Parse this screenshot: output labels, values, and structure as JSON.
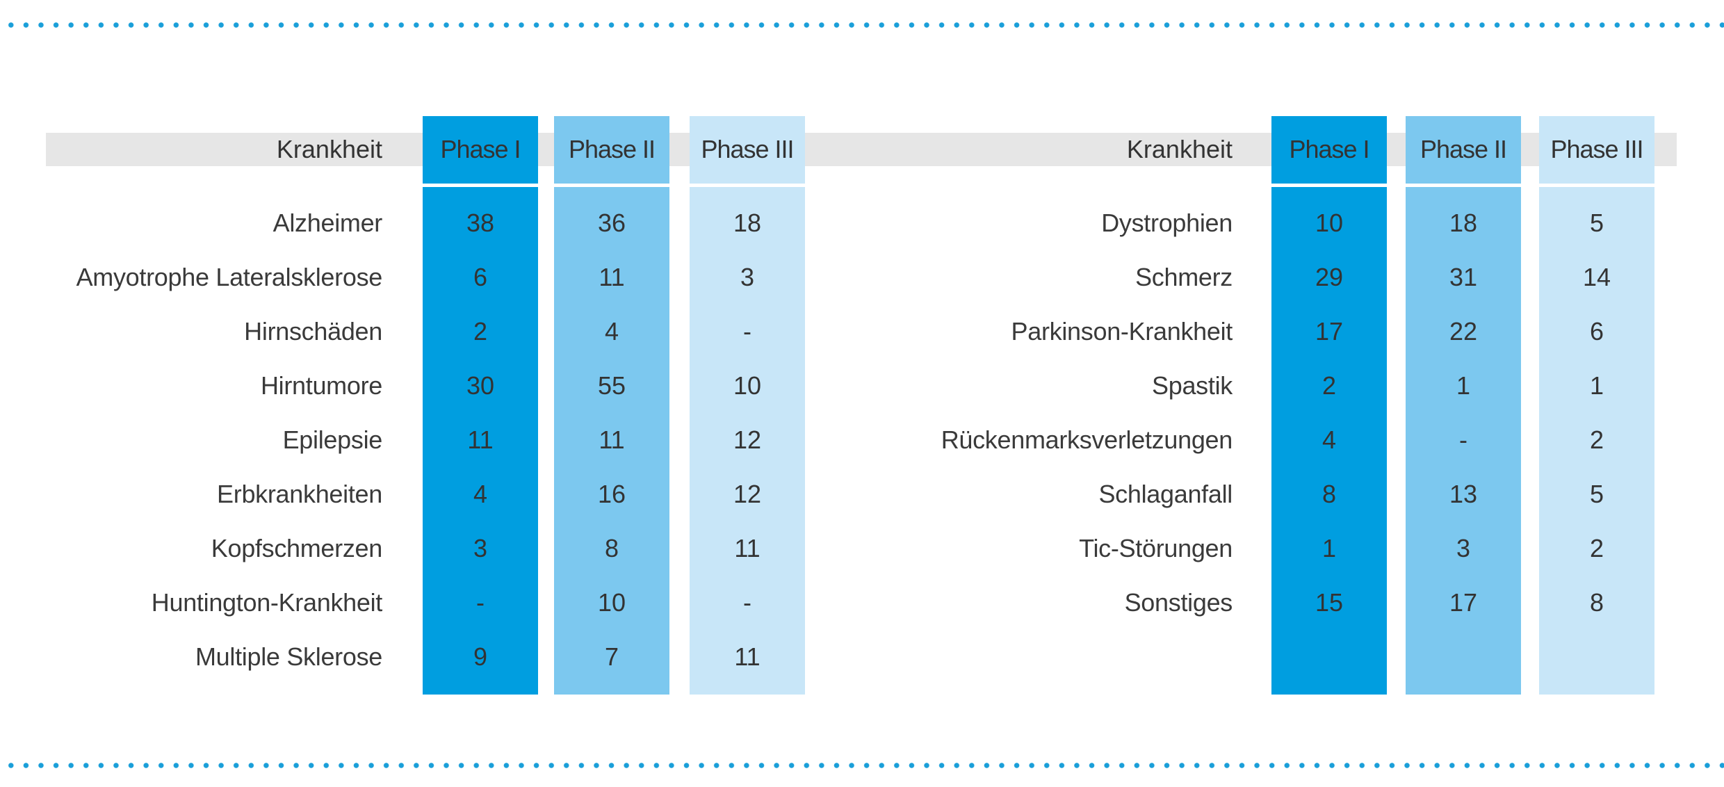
{
  "colors": {
    "dots": "#1a9fd9",
    "header_band": "#e6e6e6",
    "phase_1": "#009ee0",
    "phase_2": "#7cc8ef",
    "phase_3": "#c8e6f8"
  },
  "chart_data": [
    {
      "type": "table",
      "columns": [
        "Krankheit",
        "Phase I",
        "Phase II",
        "Phase III"
      ],
      "rows": [
        {
          "disease": "Alzheimer",
          "p1": "38",
          "p2": "36",
          "p3": "18"
        },
        {
          "disease": "Amyotrophe Lateralsklerose",
          "p1": "6",
          "p2": "11",
          "p3": "3"
        },
        {
          "disease": "Hirnschäden",
          "p1": "2",
          "p2": "4",
          "p3": "-"
        },
        {
          "disease": "Hirntumore",
          "p1": "30",
          "p2": "55",
          "p3": "10"
        },
        {
          "disease": "Epilepsie",
          "p1": "11",
          "p2": "11",
          "p3": "12"
        },
        {
          "disease": "Erbkrankheiten",
          "p1": "4",
          "p2": "16",
          "p3": "12"
        },
        {
          "disease": "Kopfschmerzen",
          "p1": "3",
          "p2": "8",
          "p3": "11"
        },
        {
          "disease": "Huntington-Krankheit",
          "p1": "-",
          "p2": "10",
          "p3": "-"
        },
        {
          "disease": "Multiple Sklerose",
          "p1": "9",
          "p2": "7",
          "p3": "11"
        }
      ]
    },
    {
      "type": "table",
      "columns": [
        "Krankheit",
        "Phase I",
        "Phase II",
        "Phase III"
      ],
      "rows": [
        {
          "disease": "Dystrophien",
          "p1": "10",
          "p2": "18",
          "p3": "5"
        },
        {
          "disease": "Schmerz",
          "p1": "29",
          "p2": "31",
          "p3": "14"
        },
        {
          "disease": "Parkinson-Krankheit",
          "p1": "17",
          "p2": "22",
          "p3": "6"
        },
        {
          "disease": "Spastik",
          "p1": "2",
          "p2": "1",
          "p3": "1"
        },
        {
          "disease": "Rückenmarksverletzungen",
          "p1": "4",
          "p2": "-",
          "p3": "2"
        },
        {
          "disease": "Schlaganfall",
          "p1": "8",
          "p2": "13",
          "p3": "5"
        },
        {
          "disease": "Tic-Störungen",
          "p1": "1",
          "p2": "3",
          "p3": "2"
        },
        {
          "disease": "Sonstiges",
          "p1": "15",
          "p2": "17",
          "p3": "8"
        }
      ]
    }
  ]
}
